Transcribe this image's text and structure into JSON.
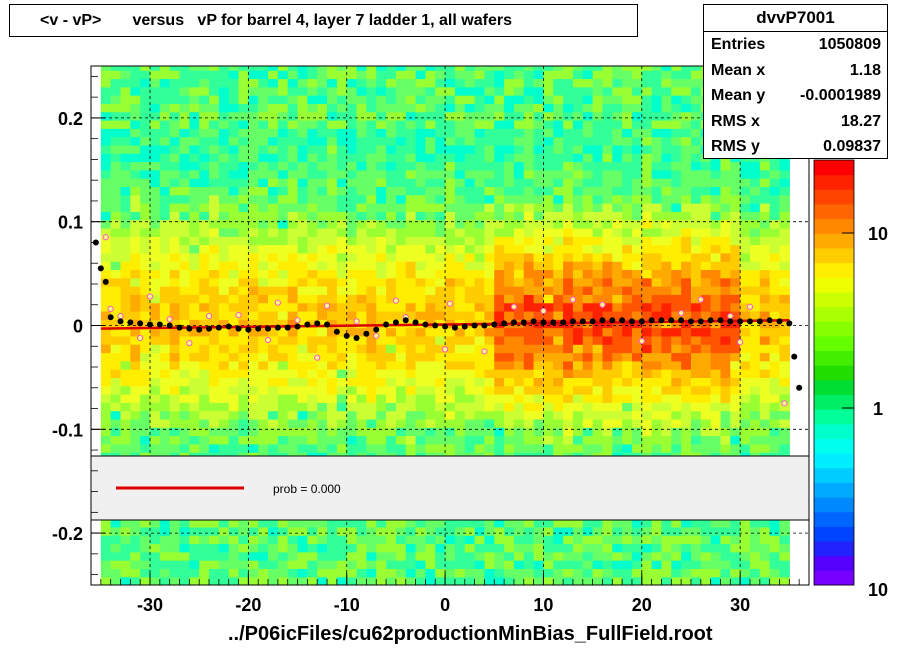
{
  "title": "<v - vP>       versus   vP for barrel 4, layer 7 ladder 1, all wafers",
  "stats": {
    "name": "dvvP7001",
    "rows": [
      {
        "label": "Entries",
        "value": "1050809"
      },
      {
        "label": "Mean x",
        "value": "1.18"
      },
      {
        "label": "Mean y",
        "value": "-0.0001989"
      },
      {
        "label": "RMS x",
        "value": "18.27"
      },
      {
        "label": "RMS y",
        "value": "0.09837"
      }
    ]
  },
  "legend": {
    "label": "prob = 0.000",
    "line_color": "#dd0000"
  },
  "x_axis_title": "../P06icFiles/cu62productionMinBias_FullField.root",
  "colors": {
    "fit_line": "#dd0000",
    "points": "#000000",
    "open_points": "#ff55cc"
  },
  "chart_data": {
    "type": "heatmap",
    "title": "<v - vP>       versus   vP for barrel 4, layer 7 ladder 1, all wafers",
    "xlabel": "../P06icFiles/cu62productionMinBias_FullField.root",
    "ylabel": "",
    "xlim": [
      -36,
      37
    ],
    "ylim": [
      -0.25,
      0.25
    ],
    "x_ticks": [
      "-30",
      "-20",
      "-10",
      "0",
      "10",
      "20",
      "30"
    ],
    "y_ticks": [
      "-0.2",
      "-0.1",
      "0",
      "0.1",
      "0.2"
    ],
    "z_scale": "log",
    "z_ticks": [
      "1",
      "10",
      "10"
    ],
    "grid": true,
    "fit_line": {
      "x": [
        -35,
        35
      ],
      "y": [
        -0.003,
        0.005
      ]
    },
    "profile_mean": {
      "x": [
        -35.5,
        -35,
        -34.5,
        -34,
        -33,
        -32,
        -31,
        -30,
        -29,
        -28,
        -27,
        -26,
        -25,
        -24,
        -23,
        -22,
        -21,
        -20,
        -19,
        -18,
        -17,
        -16,
        -15,
        -14,
        -13,
        -12,
        -11,
        -10,
        -9,
        -8,
        -7,
        -6,
        -5,
        -4,
        -3,
        -2,
        -1,
        0,
        1,
        2,
        3,
        4,
        5,
        6,
        7,
        8,
        9,
        10,
        11,
        12,
        13,
        14,
        15,
        16,
        17,
        18,
        19,
        20,
        21,
        22,
        23,
        24,
        25,
        26,
        27,
        28,
        29,
        30,
        31,
        32,
        33,
        34,
        35,
        35.5,
        36
      ],
      "y": [
        0.08,
        0.055,
        0.042,
        0.008,
        0.004,
        0.003,
        0.002,
        0.001,
        0.001,
        0,
        -0.002,
        -0.003,
        -0.004,
        -0.003,
        -0.002,
        -0.001,
        -0.003,
        -0.004,
        -0.003,
        -0.003,
        -0.002,
        -0.002,
        -0.001,
        0.001,
        0.002,
        0.001,
        -0.006,
        -0.01,
        -0.012,
        -0.008,
        -0.004,
        0.001,
        0.003,
        0.005,
        0.003,
        0.001,
        0,
        -0.001,
        -0.002,
        -0.001,
        0,
        0,
        0.001,
        0.002,
        0.003,
        0.003,
        0.004,
        0.003,
        0.003,
        0.003,
        0.004,
        0.004,
        0.004,
        0.005,
        0.005,
        0.005,
        0.004,
        0.004,
        0.005,
        0.005,
        0.005,
        0.005,
        0.004,
        0.004,
        0.005,
        0.005,
        0.004,
        0.004,
        0.004,
        0.004,
        0.005,
        0.004,
        0.002,
        -0.03,
        -0.06
      ]
    },
    "outliers": {
      "x": [
        -34.5,
        -34,
        -33,
        -31,
        -30,
        -28,
        -26,
        -24,
        -21,
        -18,
        -17,
        -15,
        -13,
        -12,
        -9,
        -7,
        -5,
        -4,
        0,
        0.5,
        4,
        7,
        10,
        13,
        16,
        20,
        24,
        26,
        29,
        30,
        31,
        34.5
      ],
      "y": [
        0.085,
        0.016,
        0.009,
        -0.012,
        0.028,
        0.006,
        -0.017,
        0.009,
        0.01,
        -0.014,
        0.022,
        0.005,
        -0.031,
        0.019,
        0.004,
        -0.01,
        0.024,
        0.008,
        -0.023,
        0.021,
        -0.025,
        0.018,
        0.014,
        0.025,
        0.02,
        -0.015,
        0.012,
        0.025,
        0.009,
        -0.016,
        0.018,
        -0.075
      ]
    }
  }
}
